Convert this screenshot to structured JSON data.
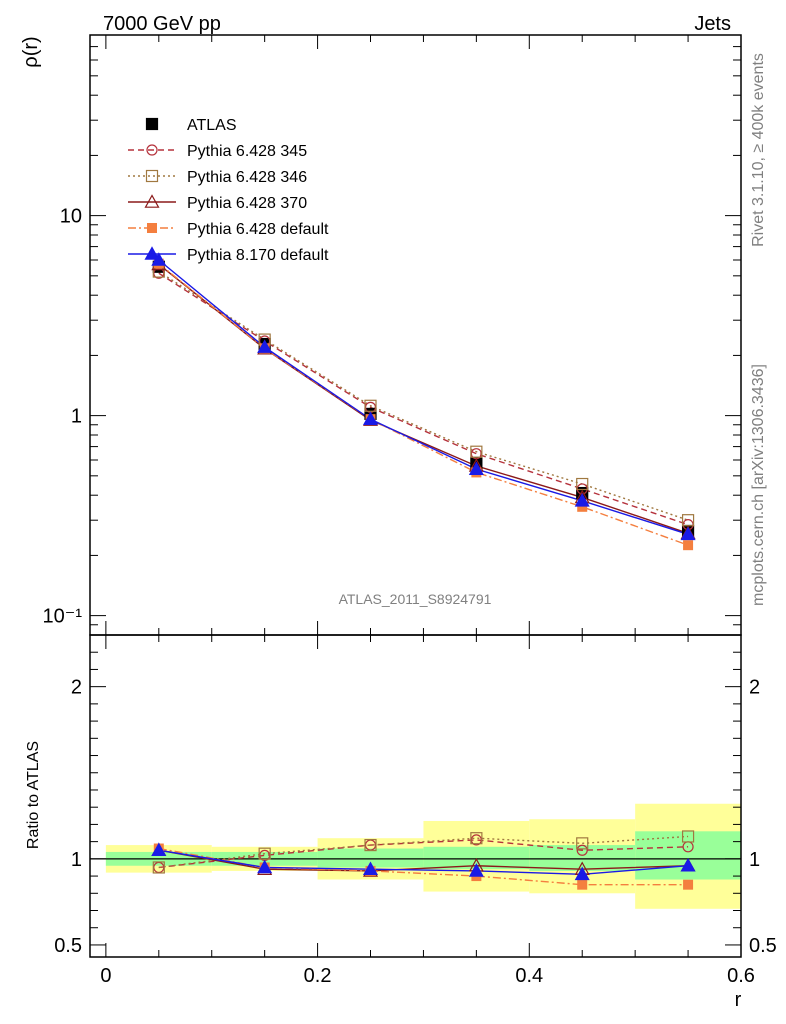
{
  "header": {
    "left_title": "7000 GeV pp",
    "right_title": "Jets"
  },
  "side_labels": {
    "rivet": "Rivet 3.1.10, ≥ 400k events",
    "mcplots": "mcplots.cern.ch [arXiv:1306.3436]"
  },
  "analysis_tag": "ATLAS_2011_S8924791",
  "chart_data": [
    {
      "type": "scatter",
      "panel": "main",
      "ylabel": "ρ(r)",
      "y_scale": "log",
      "ylim": [
        0.08,
        80
      ],
      "xlim": [
        -0.015,
        0.6
      ],
      "y_tick_labels": [
        "10⁻¹",
        "1",
        "10"
      ],
      "x": [
        0.05,
        0.15,
        0.25,
        0.35,
        0.45,
        0.55
      ],
      "series": [
        {
          "name": "ATLAS",
          "color": "#000000",
          "values": [
            5.55,
            2.28,
            1.02,
            0.58,
            0.41,
            0.265
          ]
        },
        {
          "name": "Pythia 6.428 345",
          "color": "#b5323c",
          "values": [
            5.15,
            2.36,
            1.1,
            0.645,
            0.43,
            0.285
          ]
        },
        {
          "name": "Pythia 6.428 346",
          "color": "#a07840",
          "values": [
            5.25,
            2.4,
            1.12,
            0.66,
            0.455,
            0.3
          ]
        },
        {
          "name": "Pythia 6.428 370",
          "color": "#8b1a1a",
          "values": [
            5.7,
            2.16,
            0.95,
            0.56,
            0.39,
            0.258
          ]
        },
        {
          "name": "Pythia 6.428 default",
          "color": "#f47f3f",
          "values": [
            5.75,
            2.17,
            0.96,
            0.52,
            0.35,
            0.225
          ]
        },
        {
          "name": "Pythia 8.170 default",
          "color": "#1a1ae6",
          "values": [
            6.0,
            2.2,
            0.96,
            0.54,
            0.375,
            0.255
          ]
        }
      ]
    },
    {
      "type": "scatter",
      "panel": "ratio",
      "ylabel": "Ratio to ATLAS",
      "xlabel": "r",
      "ylim": [
        0.43,
        2.3
      ],
      "xlim": [
        -0.015,
        0.6
      ],
      "y_tick_labels": [
        "0.5",
        "1",
        "2"
      ],
      "x_tick_labels": [
        "0",
        "0.2",
        "0.4",
        "0.6"
      ],
      "x": [
        0.05,
        0.15,
        0.25,
        0.35,
        0.45,
        0.55
      ],
      "bins": [
        [
          0.0,
          0.1
        ],
        [
          0.1,
          0.2
        ],
        [
          0.2,
          0.3
        ],
        [
          0.3,
          0.4
        ],
        [
          0.4,
          0.5
        ],
        [
          0.5,
          0.6
        ]
      ],
      "band_inner": [
        [
          0.96,
          1.04
        ],
        [
          0.96,
          1.04
        ],
        [
          0.95,
          1.06
        ],
        [
          0.94,
          1.07
        ],
        [
          0.93,
          1.08
        ],
        [
          0.88,
          1.16
        ]
      ],
      "band_outer": [
        [
          0.92,
          1.08
        ],
        [
          0.93,
          1.07
        ],
        [
          0.88,
          1.12
        ],
        [
          0.81,
          1.22
        ],
        [
          0.8,
          1.23
        ],
        [
          0.71,
          1.32
        ]
      ],
      "series": [
        {
          "name": "Pythia 6.428 345",
          "values": [
            0.95,
            1.02,
            1.08,
            1.11,
            1.05,
            1.07
          ]
        },
        {
          "name": "Pythia 6.428 346",
          "values": [
            0.95,
            1.03,
            1.08,
            1.12,
            1.09,
            1.13
          ]
        },
        {
          "name": "Pythia 6.428 370",
          "values": [
            1.05,
            0.94,
            0.93,
            0.96,
            0.94,
            0.96
          ]
        },
        {
          "name": "Pythia 6.428 default",
          "values": [
            1.06,
            0.95,
            0.93,
            0.9,
            0.85,
            0.85
          ]
        },
        {
          "name": "Pythia 8.170 default",
          "values": [
            1.05,
            0.95,
            0.94,
            0.93,
            0.91,
            0.96
          ]
        }
      ]
    }
  ]
}
